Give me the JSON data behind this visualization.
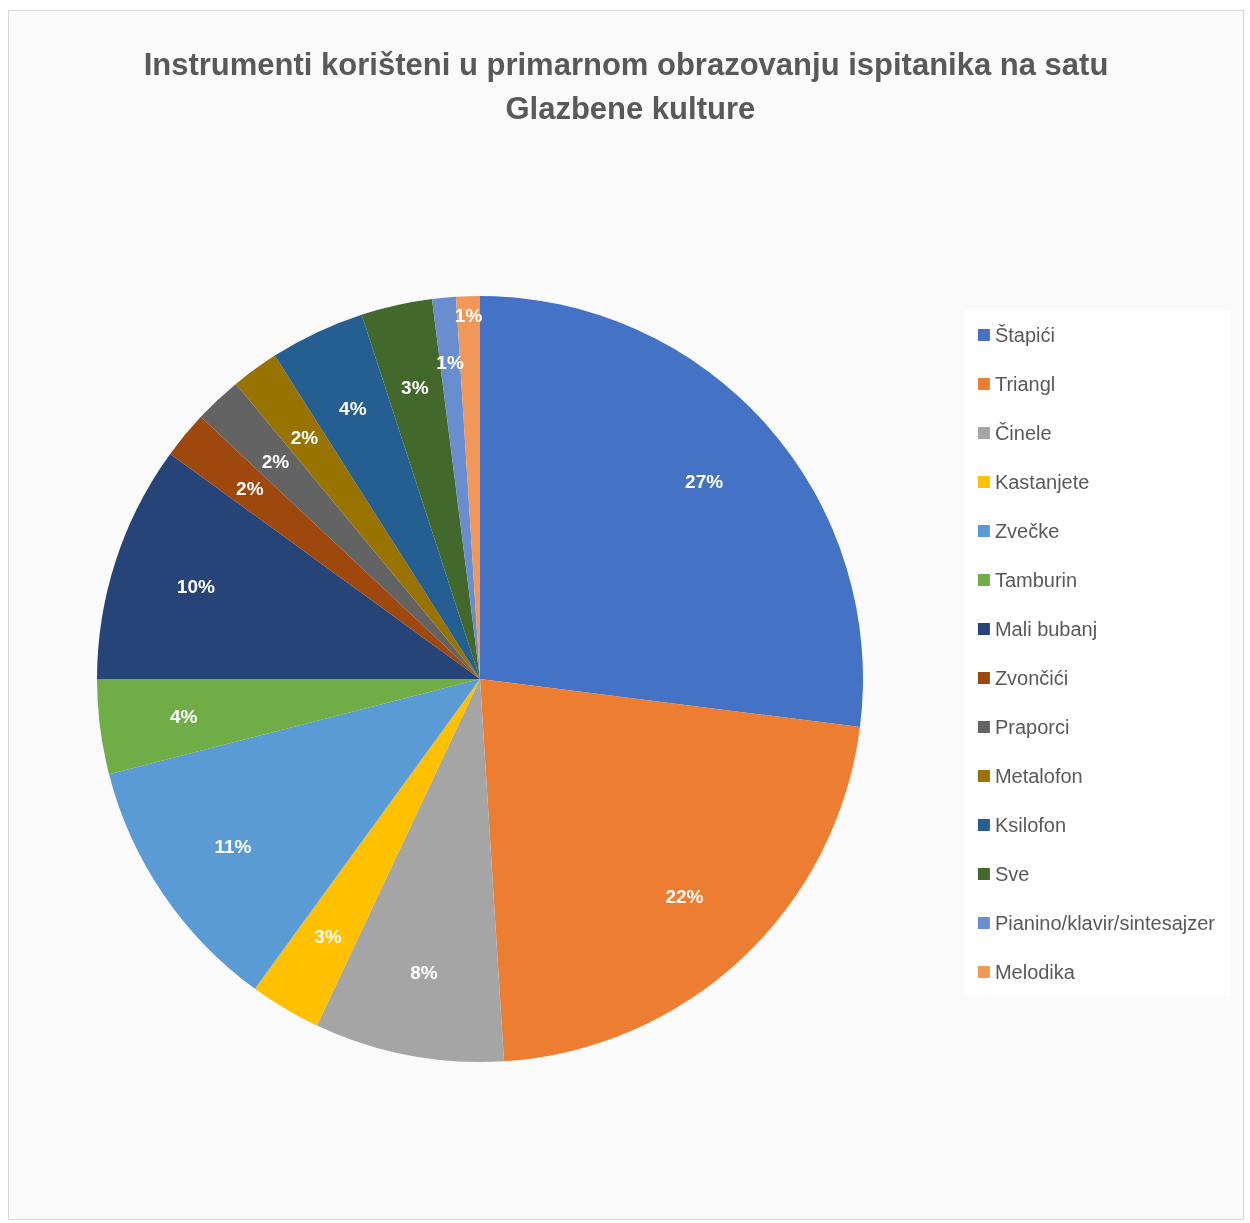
{
  "chart_data": {
    "type": "pie",
    "title": "Instrumenti korišteni u primarnom obrazovanju ispitanika na satu Glazbene kulture",
    "categories": [
      "Štapići",
      "Triangl",
      "Činele",
      "Kastanjete",
      "Zvečke",
      "Tamburin",
      "Mali bubanj",
      "Zvončići",
      "Praporci",
      "Metalofon",
      "Ksilofon",
      "Sve",
      "Pianino/klavir/sintesajzer",
      "Melodika"
    ],
    "values": [
      27,
      22,
      8,
      3,
      11,
      4,
      10,
      2,
      2,
      2,
      4,
      3,
      1,
      1
    ],
    "colors": [
      "#4472c4",
      "#ed7d31",
      "#a5a5a5",
      "#ffc000",
      "#5b9bd5",
      "#70ad47",
      "#264478",
      "#9e480e",
      "#636363",
      "#997300",
      "#255e91",
      "#43682b",
      "#698ed0",
      "#f1975a"
    ],
    "value_labels": [
      "27%",
      "22%",
      "8%",
      "3%",
      "11%",
      "4%",
      "10%",
      "2%",
      "2%",
      "2%",
      "4%",
      "3%",
      "1%",
      "1%"
    ],
    "legend": "right"
  }
}
